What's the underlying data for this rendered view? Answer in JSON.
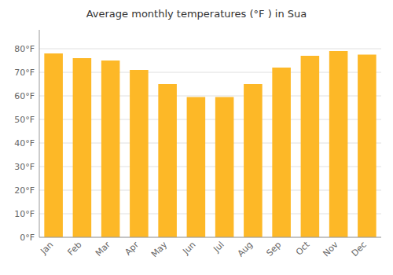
{
  "chart_data": {
    "type": "bar",
    "title": "Average monthly temperatures (°F ) in Sua",
    "categories": [
      "Jan",
      "Feb",
      "Mar",
      "Apr",
      "May",
      "Jun",
      "Jul",
      "Aug",
      "Sep",
      "Oct",
      "Nov",
      "Dec"
    ],
    "values": [
      78,
      76,
      75,
      71,
      65,
      59.5,
      59.5,
      65,
      72,
      77,
      79,
      77.5
    ],
    "color": "#FDB827",
    "ylim": [
      0,
      88
    ],
    "yticks": [
      {
        "value": 0,
        "label": "0°F"
      },
      {
        "value": 10,
        "label": "10°F"
      },
      {
        "value": 20,
        "label": "20°F"
      },
      {
        "value": 30,
        "label": "30°F"
      },
      {
        "value": 40,
        "label": "40°F"
      },
      {
        "value": 50,
        "label": "50°F"
      },
      {
        "value": 60,
        "label": "60°F"
      },
      {
        "value": 70,
        "label": "70°F"
      },
      {
        "value": 80,
        "label": "80°F"
      }
    ],
    "grid": true
  }
}
